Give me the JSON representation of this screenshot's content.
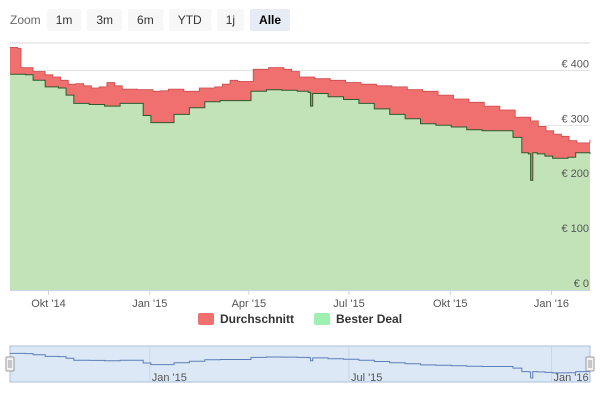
{
  "zoom": {
    "label": "Zoom",
    "buttons": [
      "1m",
      "3m",
      "6m",
      "YTD",
      "1j",
      "Alle"
    ],
    "selected": "Alle"
  },
  "chart_data": {
    "type": "area",
    "title": "",
    "xlabel": "",
    "ylabel": "",
    "y_tick_labels": [
      "€ 0",
      "€ 100",
      "€ 200",
      "€ 300",
      "€ 400"
    ],
    "y_ticks": [
      0,
      100,
      200,
      300,
      400
    ],
    "ylim": [
      0,
      450
    ],
    "xlim": [
      "2014-08-27",
      "2016-02-05"
    ],
    "x_ticks": [
      {
        "date": "2014-10-01",
        "label": "Okt '14"
      },
      {
        "date": "2015-01-01",
        "label": "Jan '15"
      },
      {
        "date": "2015-04-01",
        "label": "Apr '15"
      },
      {
        "date": "2015-07-01",
        "label": "Jul '15"
      },
      {
        "date": "2015-10-01",
        "label": "Okt '15"
      },
      {
        "date": "2016-01-01",
        "label": "Jan '16"
      }
    ],
    "grid": true,
    "legend_position": "bottom-center",
    "series": [
      {
        "name": "Durchschnitt",
        "color": "#f07070",
        "points": [
          [
            "2014-08-27",
            442
          ],
          [
            "2014-09-03",
            440
          ],
          [
            "2014-09-06",
            405
          ],
          [
            "2014-09-17",
            398
          ],
          [
            "2014-09-28",
            392
          ],
          [
            "2014-10-05",
            388
          ],
          [
            "2014-10-12",
            382
          ],
          [
            "2014-10-19",
            375
          ],
          [
            "2014-10-26",
            376
          ],
          [
            "2014-11-02",
            372
          ],
          [
            "2014-11-09",
            368
          ],
          [
            "2014-11-16",
            370
          ],
          [
            "2014-11-23",
            378
          ],
          [
            "2014-11-30",
            372
          ],
          [
            "2014-12-07",
            366
          ],
          [
            "2014-12-21",
            365
          ],
          [
            "2015-01-04",
            362
          ],
          [
            "2015-01-11",
            363
          ],
          [
            "2015-01-18",
            366
          ],
          [
            "2015-02-01",
            362
          ],
          [
            "2015-02-15",
            368
          ],
          [
            "2015-03-01",
            370
          ],
          [
            "2015-03-08",
            375
          ],
          [
            "2015-03-15",
            382
          ],
          [
            "2015-03-22",
            380
          ],
          [
            "2015-04-05",
            402
          ],
          [
            "2015-04-19",
            405
          ],
          [
            "2015-05-03",
            402
          ],
          [
            "2015-05-10",
            398
          ],
          [
            "2015-05-17",
            388
          ],
          [
            "2015-05-31",
            385
          ],
          [
            "2015-06-14",
            382
          ],
          [
            "2015-06-28",
            378
          ],
          [
            "2015-07-12",
            375
          ],
          [
            "2015-07-26",
            372
          ],
          [
            "2015-08-09",
            370
          ],
          [
            "2015-08-23",
            365
          ],
          [
            "2015-09-06",
            362
          ],
          [
            "2015-09-20",
            355
          ],
          [
            "2015-10-04",
            348
          ],
          [
            "2015-10-18",
            342
          ],
          [
            "2015-11-01",
            335
          ],
          [
            "2015-11-15",
            328
          ],
          [
            "2015-11-29",
            315
          ],
          [
            "2015-12-13",
            308
          ],
          [
            "2015-12-20",
            298
          ],
          [
            "2015-12-27",
            290
          ],
          [
            "2016-01-03",
            284
          ],
          [
            "2016-01-10",
            280
          ],
          [
            "2016-01-17",
            272
          ],
          [
            "2016-01-24",
            268
          ],
          [
            "2016-02-05",
            274
          ]
        ]
      },
      {
        "name": "Bester Deal",
        "color": "#c2e3b8",
        "points": [
          [
            "2014-08-27",
            393
          ],
          [
            "2014-09-10",
            392
          ],
          [
            "2014-09-17",
            382
          ],
          [
            "2014-09-28",
            370
          ],
          [
            "2014-10-10",
            368
          ],
          [
            "2014-10-17",
            355
          ],
          [
            "2014-10-24",
            340
          ],
          [
            "2014-11-07",
            338
          ],
          [
            "2014-11-21",
            335
          ],
          [
            "2014-12-05",
            340
          ],
          [
            "2014-12-19",
            340
          ],
          [
            "2014-12-26",
            318
          ],
          [
            "2015-01-02",
            305
          ],
          [
            "2015-01-16",
            305
          ],
          [
            "2015-01-23",
            320
          ],
          [
            "2015-02-06",
            332
          ],
          [
            "2015-02-20",
            343
          ],
          [
            "2015-03-06",
            345
          ],
          [
            "2015-03-20",
            345
          ],
          [
            "2015-04-03",
            362
          ],
          [
            "2015-04-17",
            365
          ],
          [
            "2015-05-01",
            364
          ],
          [
            "2015-05-15",
            362
          ],
          [
            "2015-05-25",
            360
          ],
          [
            "2015-05-27",
            335
          ],
          [
            "2015-05-29",
            358
          ],
          [
            "2015-06-12",
            352
          ],
          [
            "2015-06-26",
            347
          ],
          [
            "2015-07-10",
            340
          ],
          [
            "2015-07-24",
            330
          ],
          [
            "2015-08-07",
            320
          ],
          [
            "2015-08-21",
            312
          ],
          [
            "2015-09-04",
            303
          ],
          [
            "2015-09-18",
            300
          ],
          [
            "2015-10-02",
            297
          ],
          [
            "2015-10-16",
            292
          ],
          [
            "2015-10-30",
            290
          ],
          [
            "2015-11-13",
            290
          ],
          [
            "2015-11-27",
            278
          ],
          [
            "2015-12-05",
            250
          ],
          [
            "2015-12-11",
            248
          ],
          [
            "2015-12-13",
            200
          ],
          [
            "2015-12-15",
            250
          ],
          [
            "2015-12-19",
            248
          ],
          [
            "2015-12-26",
            244
          ],
          [
            "2016-01-02",
            240
          ],
          [
            "2016-01-09",
            240
          ],
          [
            "2016-01-16",
            242
          ],
          [
            "2016-01-23",
            250
          ],
          [
            "2016-02-05",
            248
          ]
        ]
      }
    ]
  },
  "navigator": {
    "x_tick_labels": [
      {
        "date": "2015-01-01",
        "label": "Jan '15"
      },
      {
        "date": "2015-07-01",
        "label": "Jul '15"
      },
      {
        "date": "2016-01-01",
        "label": "Jan '16"
      }
    ]
  }
}
